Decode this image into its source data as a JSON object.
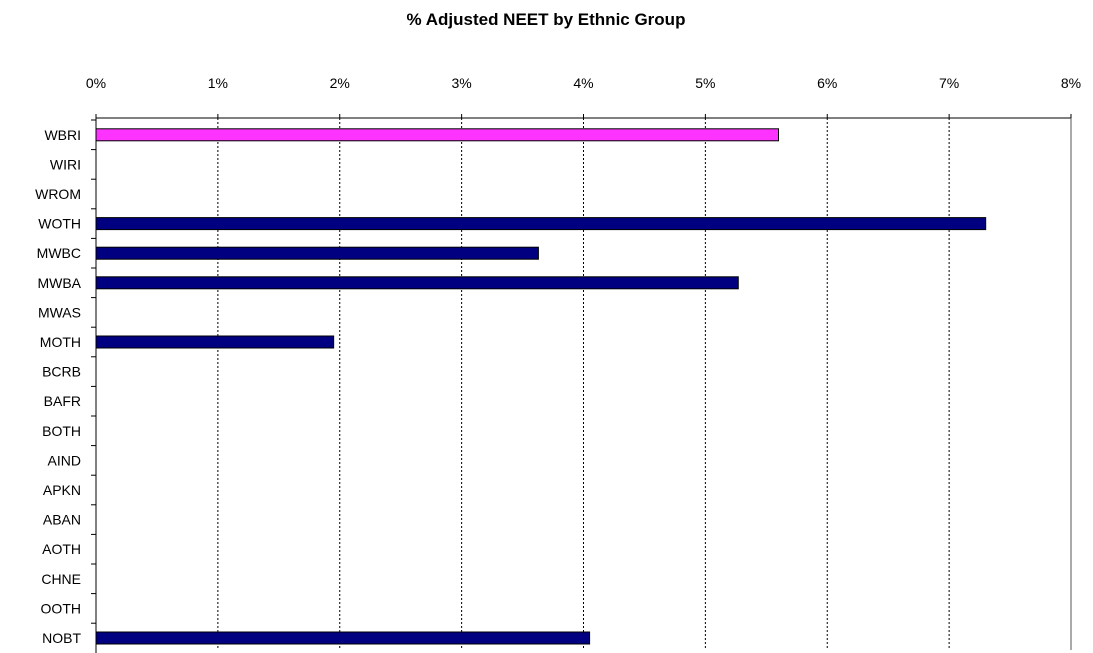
{
  "chart_data": {
    "type": "bar",
    "orientation": "horizontal",
    "title": "% Adjusted NEET by Ethnic Group",
    "xlabel": "",
    "ylabel": "",
    "xlim": [
      0,
      8
    ],
    "x_ticks": [
      "0%",
      "1%",
      "2%",
      "3%",
      "4%",
      "5%",
      "6%",
      "7%",
      "8%"
    ],
    "x_axis_position": "top",
    "grid": "vertical dashed",
    "legend": "none",
    "categories": [
      "WBRI",
      "WIRI",
      "WROM",
      "WOTH",
      "MWBC",
      "MWBA",
      "MWAS",
      "MOTH",
      "BCRB",
      "BAFR",
      "BOTH",
      "AIND",
      "APKN",
      "ABAN",
      "AOTH",
      "CHNE",
      "OOTH",
      "NOBT"
    ],
    "values": [
      5.6,
      0,
      0,
      7.3,
      3.63,
      5.27,
      0,
      1.95,
      0,
      0,
      0,
      0,
      0,
      0,
      0,
      0,
      0,
      4.05
    ],
    "bar_colors": [
      "#ff33ff",
      "#000080",
      "#000080",
      "#000080",
      "#000080",
      "#000080",
      "#000080",
      "#000080",
      "#000080",
      "#000080",
      "#000080",
      "#000080",
      "#000080",
      "#000080",
      "#000080",
      "#000080",
      "#000080",
      "#000080"
    ],
    "highlight_color": "#ff33ff",
    "bar_color": "#000080"
  }
}
